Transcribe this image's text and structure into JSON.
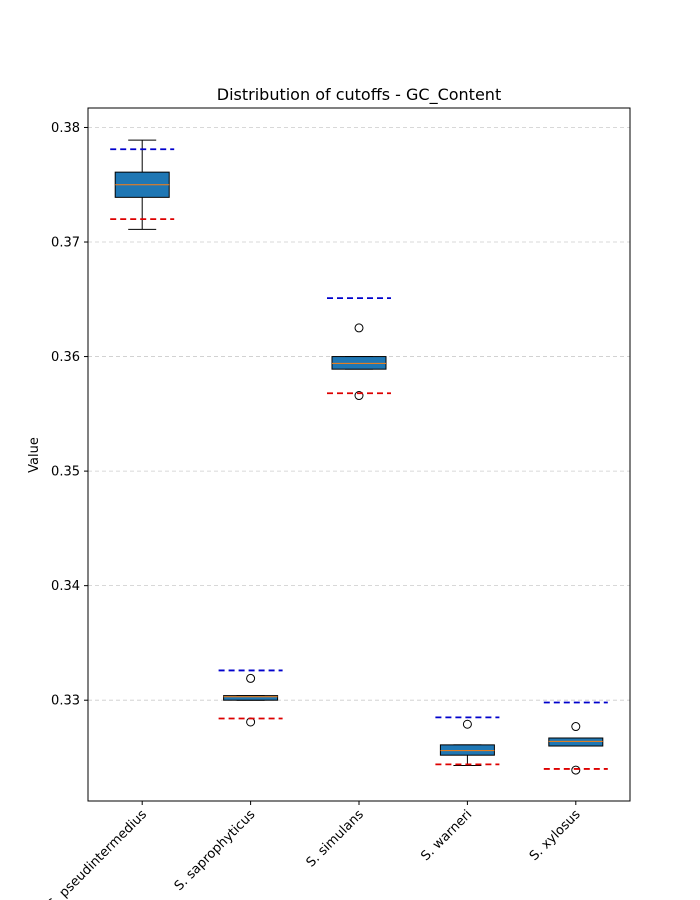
{
  "chart_data": {
    "type": "box",
    "title": "Distribution of cutoffs - GC_Content",
    "xlabel": "",
    "ylabel": "Value",
    "ylim": [
      0.3212,
      0.3817
    ],
    "yticks": [
      0.33,
      0.34,
      0.35,
      0.36,
      0.37,
      0.38
    ],
    "ytick_labels": [
      "0.33",
      "0.34",
      "0.35",
      "0.36",
      "0.37",
      "0.38"
    ],
    "grid": "horizontal dashed",
    "box_color": "#1f77b4",
    "median_color": "#ff7f0e",
    "upper_cutoff_color": "#0000cc",
    "lower_cutoff_color": "#dd0000",
    "categories": [
      "S. pseudintermedius",
      "S. saprophyticus",
      "S. simulans",
      "S. warneri",
      "S. xylosus"
    ],
    "boxes": [
      {
        "category": "S. pseudintermedius",
        "whisker_low": 0.3711,
        "q1": 0.3739,
        "median": 0.375,
        "q3": 0.3761,
        "whisker_high": 0.3789,
        "outliers": [],
        "upper_cutoff": 0.3781,
        "lower_cutoff": 0.372
      },
      {
        "category": "S. saprophyticus",
        "whisker_low": 0.33,
        "q1": 0.33,
        "median": 0.3303,
        "q3": 0.3304,
        "whisker_high": 0.3304,
        "outliers": [
          0.3281,
          0.3319
        ],
        "upper_cutoff": 0.3326,
        "lower_cutoff": 0.3284
      },
      {
        "category": "S. simulans",
        "whisker_low": 0.3589,
        "q1": 0.3589,
        "median": 0.3594,
        "q3": 0.36,
        "whisker_high": 0.36,
        "outliers": [
          0.3566,
          0.3625
        ],
        "upper_cutoff": 0.3651,
        "lower_cutoff": 0.3568
      },
      {
        "category": "S. warneri",
        "whisker_low": 0.3243,
        "q1": 0.3252,
        "median": 0.3256,
        "q3": 0.3261,
        "whisker_high": 0.3261,
        "outliers": [
          0.3279
        ],
        "upper_cutoff": 0.3285,
        "lower_cutoff": 0.3244
      },
      {
        "category": "S. xylosus",
        "whisker_low": 0.326,
        "q1": 0.326,
        "median": 0.3264,
        "q3": 0.3267,
        "whisker_high": 0.3267,
        "outliers": [
          0.3239,
          0.3277
        ],
        "upper_cutoff": 0.3298,
        "lower_cutoff": 0.324
      }
    ]
  }
}
